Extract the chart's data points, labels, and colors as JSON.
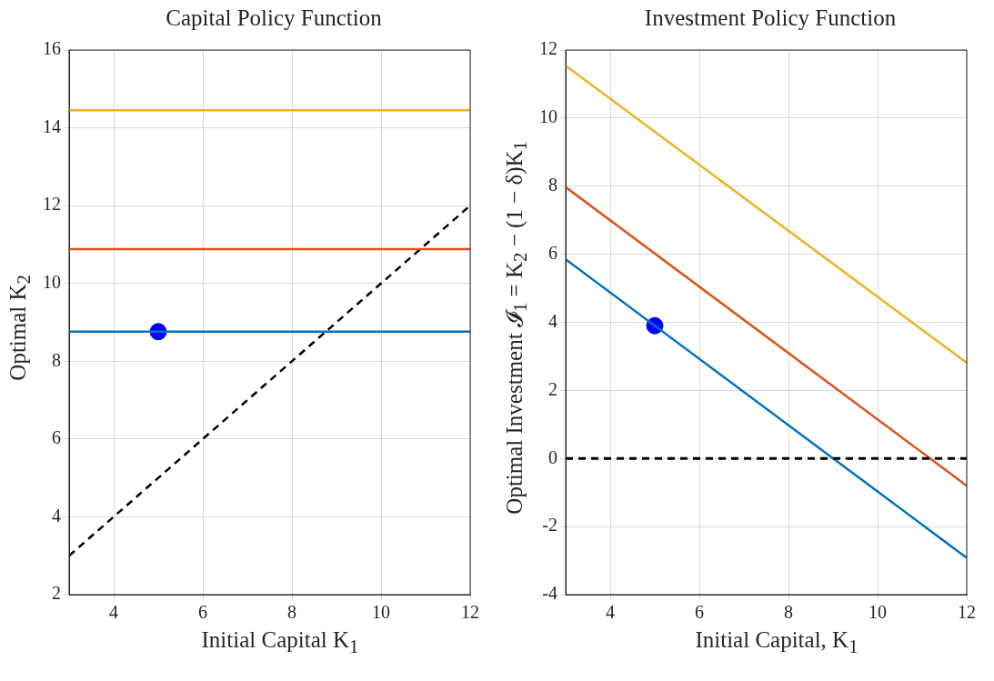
{
  "chart_data": [
    {
      "type": "line",
      "title": "Capital Policy Function",
      "xlabel": "Initial Capital K$_{1}$",
      "ylabel": "Optimal K$_{2}$",
      "xlim": [
        3,
        12
      ],
      "ylim": [
        2,
        16
      ],
      "xticks": [
        4,
        6,
        8,
        10,
        12
      ],
      "yticks": [
        2,
        4,
        6,
        8,
        10,
        12,
        14,
        16
      ],
      "grid": true,
      "series": [
        {
          "color": "#edb120",
          "x": [
            3,
            12
          ],
          "values": [
            14.45,
            14.45
          ]
        },
        {
          "color": "#d95319",
          "x": [
            3,
            12
          ],
          "values": [
            10.88,
            10.88
          ]
        },
        {
          "color": "#0072bd",
          "x": [
            3,
            12
          ],
          "values": [
            8.76,
            8.76
          ]
        },
        {
          "color": "#000000",
          "line_style": "dashed",
          "x": [
            3,
            12
          ],
          "values": [
            3,
            12
          ]
        },
        {
          "type": "scatter",
          "color": "#0000ff",
          "marker": "circle",
          "x": [
            5
          ],
          "values": [
            8.76
          ]
        }
      ]
    },
    {
      "type": "line",
      "title": "Investment Policy Function",
      "xlabel": "Initial Capital, K$_{1}$",
      "ylabel": "Optimal Investment 𝓘$_{1}$ = K$_{2}$ − (1 − δ)K$_{1}$",
      "xlim": [
        3,
        12
      ],
      "ylim": [
        -4,
        12
      ],
      "xticks": [
        4,
        6,
        8,
        10,
        12
      ],
      "yticks": [
        -4,
        -2,
        0,
        2,
        4,
        6,
        8,
        10,
        12
      ],
      "grid": true,
      "series": [
        {
          "color": "#edb120",
          "x": [
            3,
            12
          ],
          "values": [
            11.54,
            2.81
          ]
        },
        {
          "color": "#d95319",
          "x": [
            3,
            12
          ],
          "values": [
            7.97,
            -0.8
          ]
        },
        {
          "color": "#0072bd",
          "x": [
            3,
            12
          ],
          "values": [
            5.85,
            -2.92
          ]
        },
        {
          "type": "scatter",
          "color": "#0000ff",
          "marker": "circle",
          "x": [
            5
          ],
          "values": [
            3.9
          ]
        }
      ],
      "ref_lines": [
        {
          "axis": "y",
          "value": 0,
          "color": "#000000",
          "line_style": "dashed"
        }
      ]
    }
  ]
}
